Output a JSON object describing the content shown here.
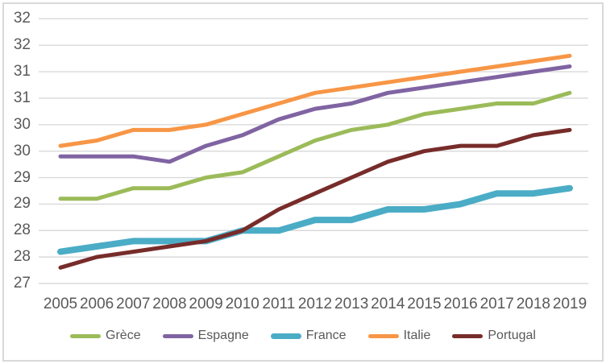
{
  "chart_data": {
    "type": "line",
    "title": "",
    "xlabel": "",
    "ylabel": "",
    "grid": "horizontal",
    "legend_position": "bottom-center",
    "x_categories": [
      "2005",
      "2006",
      "2007",
      "2008",
      "2009",
      "2010",
      "2011",
      "2012",
      "2013",
      "2014",
      "2015",
      "2016",
      "2017",
      "2018",
      "2019"
    ],
    "series": [
      {
        "name": "Grèce",
        "color": "#9BBB59",
        "line_width": 5,
        "values": [
          28.6,
          28.6,
          28.8,
          28.8,
          29.0,
          29.1,
          29.4,
          29.7,
          29.9,
          30.0,
          30.2,
          30.3,
          30.4,
          30.4,
          30.6
        ]
      },
      {
        "name": "Espagne",
        "color": "#8064A2",
        "line_width": 5,
        "values": [
          29.4,
          29.4,
          29.4,
          29.3,
          29.6,
          29.8,
          30.1,
          30.3,
          30.4,
          30.6,
          30.7,
          30.8,
          30.9,
          31.0,
          31.1
        ]
      },
      {
        "name": "France",
        "color": "#4BACC6",
        "line_width": 8,
        "values": [
          27.6,
          27.7,
          27.8,
          27.8,
          27.8,
          28.0,
          28.0,
          28.2,
          28.2,
          28.4,
          28.4,
          28.5,
          28.7,
          28.7,
          28.8
        ]
      },
      {
        "name": "Italie",
        "color": "#F79646",
        "line_width": 5,
        "values": [
          29.6,
          29.7,
          29.9,
          29.9,
          30.0,
          30.2,
          30.4,
          30.6,
          30.7,
          30.8,
          30.9,
          31.0,
          31.1,
          31.2,
          31.3
        ]
      },
      {
        "name": "Portugal",
        "color": "#772C2A",
        "line_width": 5,
        "values": [
          27.3,
          27.5,
          27.6,
          27.7,
          27.8,
          28.0,
          28.4,
          28.7,
          29.0,
          29.3,
          29.5,
          29.6,
          29.6,
          29.8,
          29.9
        ]
      }
    ],
    "y_axis": {
      "min": 27.0,
      "max": 32.0,
      "step": 0.5,
      "tick_label_format": "rounded to integer",
      "ticks": [
        {
          "value": 27.0,
          "label": "27"
        },
        {
          "value": 27.5,
          "label": "28"
        },
        {
          "value": 28.0,
          "label": "28"
        },
        {
          "value": 28.5,
          "label": "29"
        },
        {
          "value": 29.0,
          "label": "29"
        },
        {
          "value": 29.5,
          "label": "30"
        },
        {
          "value": 30.0,
          "label": "30"
        },
        {
          "value": 30.5,
          "label": "31"
        },
        {
          "value": 31.0,
          "label": "31"
        },
        {
          "value": 31.5,
          "label": "32"
        },
        {
          "value": 32.0,
          "label": "32"
        }
      ]
    },
    "colors": {
      "background": "#FFFFFF",
      "chart_border": "#D9D9D9",
      "gridline": "#D9D9D9",
      "tick_label": "#595959",
      "legend_label": "#595959"
    }
  }
}
